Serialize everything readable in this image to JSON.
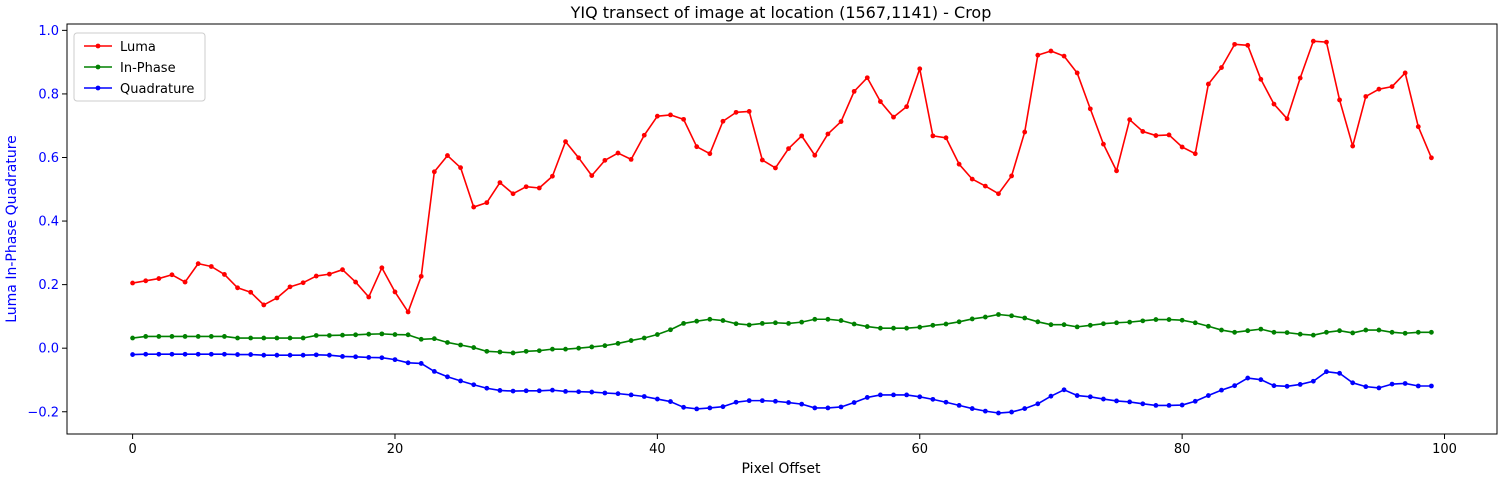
{
  "chart_data": {
    "type": "line",
    "title": "YIQ transect of image at location (1567,1141) - Crop",
    "xlabel": "Pixel Offset",
    "ylabel": "Luma In-Phase Quadrature",
    "xlim": [
      -5,
      104
    ],
    "ylim": [
      -0.27,
      1.02
    ],
    "xticks": [
      0,
      20,
      40,
      60,
      80,
      100
    ],
    "yticks": [
      -0.2,
      0.0,
      0.2,
      0.4,
      0.6,
      0.8,
      1.0
    ],
    "ytick_labels": [
      "−0.2",
      "0.0",
      "0.2",
      "0.4",
      "0.6",
      "0.8",
      "1.0"
    ],
    "ytick_color": "#0000ff",
    "ylabel_color": "#0000ff",
    "grid": false,
    "legend_position": "top-left",
    "x": [
      0,
      1,
      2,
      3,
      4,
      5,
      6,
      7,
      8,
      9,
      10,
      11,
      12,
      13,
      14,
      15,
      16,
      17,
      18,
      19,
      20,
      21,
      22,
      23,
      24,
      25,
      26,
      27,
      28,
      29,
      30,
      31,
      32,
      33,
      34,
      35,
      36,
      37,
      38,
      39,
      40,
      41,
      42,
      43,
      44,
      45,
      46,
      47,
      48,
      49,
      50,
      51,
      52,
      53,
      54,
      55,
      56,
      57,
      58,
      59,
      60,
      61,
      62,
      63,
      64,
      65,
      66,
      67,
      68,
      69,
      70,
      71,
      72,
      73,
      74,
      75,
      76,
      77,
      78,
      79,
      80,
      81,
      82,
      83,
      84,
      85,
      86,
      87,
      88,
      89,
      90,
      91,
      92,
      93,
      94,
      95,
      96,
      97,
      98,
      99
    ],
    "series": [
      {
        "name": "Luma",
        "color": "#ff0000",
        "values": [
          0.205,
          0.212,
          0.219,
          0.231,
          0.208,
          0.266,
          0.257,
          0.232,
          0.19,
          0.176,
          0.136,
          0.158,
          0.193,
          0.206,
          0.227,
          0.233,
          0.247,
          0.208,
          0.161,
          0.253,
          0.177,
          0.114,
          0.226,
          0.555,
          0.606,
          0.568,
          0.444,
          0.458,
          0.521,
          0.486,
          0.508,
          0.504,
          0.541,
          0.65,
          0.599,
          0.543,
          0.591,
          0.614,
          0.594,
          0.67,
          0.73,
          0.734,
          0.72,
          0.634,
          0.612,
          0.714,
          0.742,
          0.745,
          0.592,
          0.567,
          0.628,
          0.668,
          0.607,
          0.674,
          0.713,
          0.808,
          0.851,
          0.776,
          0.727,
          0.76,
          0.879,
          0.668,
          0.662,
          0.579,
          0.532,
          0.51,
          0.486,
          0.542,
          0.68,
          0.922,
          0.935,
          0.919,
          0.866,
          0.753,
          0.642,
          0.558,
          0.719,
          0.682,
          0.669,
          0.671,
          0.633,
          0.612,
          0.831,
          0.883,
          0.956,
          0.953,
          0.846,
          0.768,
          0.722,
          0.85,
          0.966,
          0.963,
          0.781,
          0.636,
          0.792,
          0.815,
          0.823,
          0.866,
          0.697,
          0.599
        ]
      },
      {
        "name": "In-Phase",
        "color": "#008000",
        "values": [
          0.032,
          0.037,
          0.037,
          0.037,
          0.037,
          0.037,
          0.037,
          0.037,
          0.032,
          0.032,
          0.032,
          0.032,
          0.032,
          0.032,
          0.04,
          0.04,
          0.041,
          0.042,
          0.044,
          0.045,
          0.043,
          0.042,
          0.028,
          0.03,
          0.018,
          0.01,
          0.002,
          -0.01,
          -0.012,
          -0.015,
          -0.01,
          -0.008,
          -0.003,
          -0.003,
          0.0,
          0.004,
          0.008,
          0.015,
          0.024,
          0.032,
          0.043,
          0.058,
          0.078,
          0.085,
          0.091,
          0.087,
          0.077,
          0.073,
          0.078,
          0.08,
          0.078,
          0.082,
          0.091,
          0.091,
          0.087,
          0.076,
          0.068,
          0.063,
          0.063,
          0.063,
          0.066,
          0.072,
          0.076,
          0.083,
          0.092,
          0.098,
          0.106,
          0.102,
          0.095,
          0.083,
          0.074,
          0.074,
          0.067,
          0.072,
          0.077,
          0.08,
          0.082,
          0.086,
          0.09,
          0.09,
          0.088,
          0.08,
          0.069,
          0.057,
          0.05,
          0.055,
          0.06,
          0.05,
          0.049,
          0.044,
          0.041,
          0.05,
          0.055,
          0.048,
          0.057,
          0.057,
          0.05,
          0.047,
          0.05,
          0.05
        ]
      },
      {
        "name": "Quadrature",
        "color": "#0000ff",
        "values": [
          -0.02,
          -0.019,
          -0.019,
          -0.019,
          -0.019,
          -0.019,
          -0.019,
          -0.019,
          -0.02,
          -0.02,
          -0.022,
          -0.022,
          -0.022,
          -0.022,
          -0.021,
          -0.022,
          -0.026,
          -0.027,
          -0.029,
          -0.03,
          -0.036,
          -0.046,
          -0.048,
          -0.073,
          -0.09,
          -0.103,
          -0.115,
          -0.126,
          -0.133,
          -0.135,
          -0.134,
          -0.134,
          -0.132,
          -0.136,
          -0.137,
          -0.138,
          -0.141,
          -0.143,
          -0.147,
          -0.152,
          -0.16,
          -0.168,
          -0.186,
          -0.191,
          -0.188,
          -0.184,
          -0.17,
          -0.165,
          -0.165,
          -0.167,
          -0.171,
          -0.176,
          -0.188,
          -0.188,
          -0.185,
          -0.171,
          -0.155,
          -0.147,
          -0.147,
          -0.147,
          -0.153,
          -0.161,
          -0.17,
          -0.18,
          -0.19,
          -0.198,
          -0.204,
          -0.201,
          -0.19,
          -0.175,
          -0.151,
          -0.131,
          -0.149,
          -0.153,
          -0.16,
          -0.166,
          -0.169,
          -0.175,
          -0.18,
          -0.18,
          -0.179,
          -0.167,
          -0.149,
          -0.132,
          -0.118,
          -0.094,
          -0.099,
          -0.118,
          -0.12,
          -0.114,
          -0.104,
          -0.074,
          -0.079,
          -0.109,
          -0.121,
          -0.125,
          -0.113,
          -0.111,
          -0.119,
          -0.119
        ]
      }
    ]
  }
}
